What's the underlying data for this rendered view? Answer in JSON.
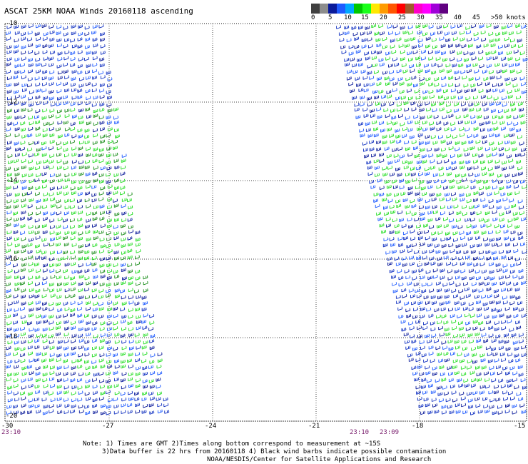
{
  "title": "ASCAT 25KM NOAA Winds 20160118 ascending",
  "legend": {
    "colors": [
      "#404040",
      "#8c8c8c",
      "#0a1a9a",
      "#1f5bff",
      "#00a8ff",
      "#00c800",
      "#1aff1a",
      "#ffe800",
      "#ff9b00",
      "#ff5500",
      "#ff0000",
      "#a05a2c",
      "#ff00c8",
      "#ff00ff",
      "#a000d8",
      "#600080"
    ],
    "labels": [
      "0",
      "5",
      "10",
      "15",
      "20",
      "25",
      "30",
      "35",
      "40",
      "45",
      ">50 knots"
    ]
  },
  "map": {
    "lat_labels": [
      "-10",
      "-12",
      "-14",
      "-16",
      "-18",
      "-20"
    ],
    "lon_labels": [
      "-30",
      "-27",
      "-24",
      "-21",
      "-18",
      "-15"
    ],
    "times": [
      "23:10",
      "23:10",
      "23:09"
    ]
  },
  "notes": {
    "line1": "Note: 1) Times are GMT 2)Times along bottom correspond to measurement at ~15S",
    "line2": "3)Data buffer is 22 hrs from 20160118 4) Black wind barbs indicate possible contamination",
    "line3": "NOAA/NESDIS/Center for Satellite Applications and Research"
  }
}
